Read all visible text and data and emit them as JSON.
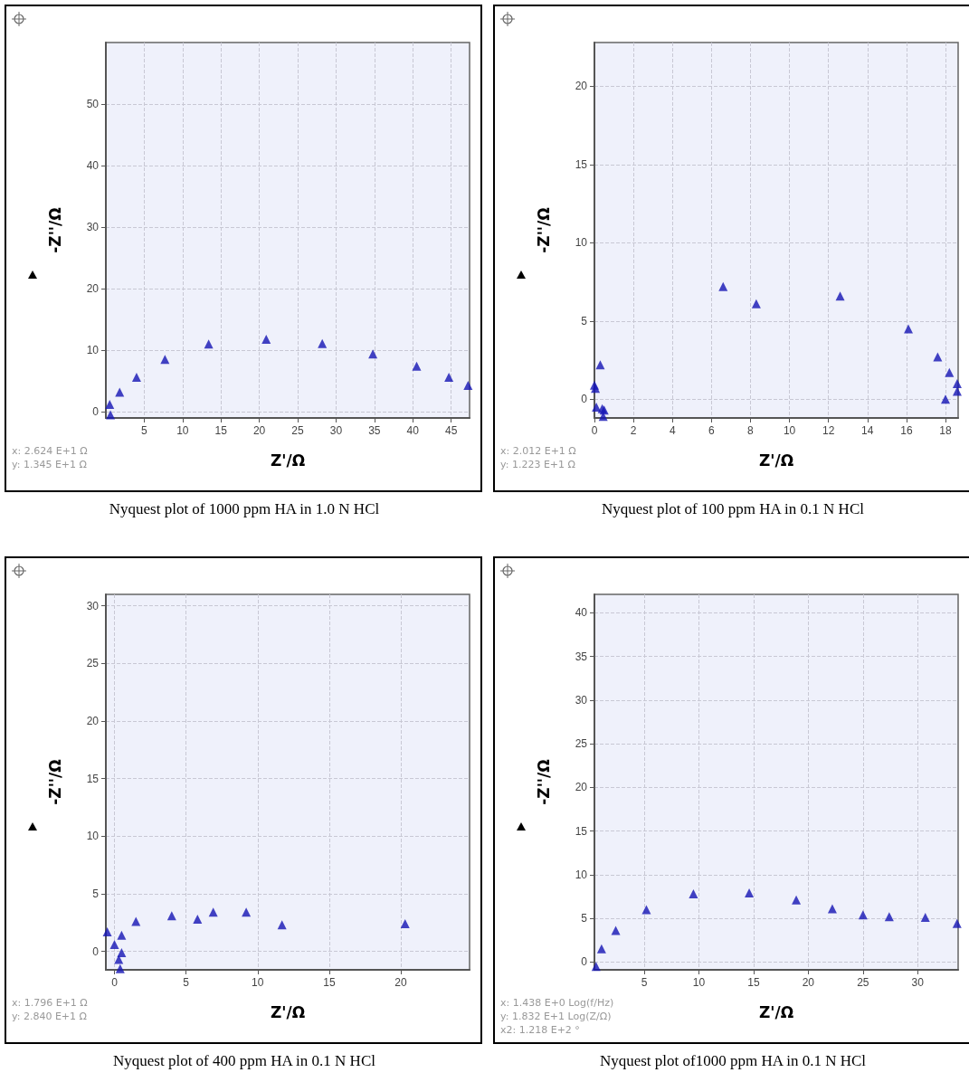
{
  "chart_data": [
    {
      "type": "scatter",
      "title": "Nyquest plot of 1000 ppm HA in 1.0 N HCl",
      "xlabel": "Z'/Ω",
      "ylabel": "-Z''/Ω",
      "marker": "triangle",
      "grid": true,
      "xlim": [
        0,
        47.4
      ],
      "ylim": [
        -1,
        60
      ],
      "xticks": [
        5,
        10,
        15,
        20,
        25,
        30,
        35,
        40,
        45
      ],
      "yticks": [
        0,
        10,
        20,
        30,
        40,
        50
      ],
      "x": [
        0.5,
        0.6,
        1.8,
        4,
        7.7,
        13.4,
        20.9,
        28.2,
        34.8,
        40.5,
        44.7,
        47.2
      ],
      "series": [
        {
          "color": "#1414b4",
          "values": [
            1.2,
            -0.5,
            3.2,
            5.6,
            8.5,
            11,
            11.8,
            11.1,
            9.4,
            7.4,
            5.6,
            4.3
          ]
        }
      ],
      "annotations": [
        "x: 2.624 E+1 Ω",
        "y: 1.345 E+1 Ω"
      ]
    },
    {
      "type": "scatter",
      "title": "Nyquest plot of 100 ppm HA in 0.1 N HCl",
      "xlabel": "Z'/Ω",
      "ylabel": "-Z''/Ω",
      "marker": "triangle",
      "grid": true,
      "xlim": [
        0,
        18.65
      ],
      "ylim": [
        -1.2,
        22.8
      ],
      "xticks": [
        0,
        2,
        4,
        6,
        8,
        10,
        12,
        14,
        16,
        18
      ],
      "yticks": [
        0,
        5,
        10,
        15,
        20
      ],
      "x": [
        0,
        0.05,
        0.3,
        0.1,
        0.4,
        0.5,
        0.45,
        6.6,
        8.3,
        12.6,
        16.1,
        17.6,
        18.2,
        18.0,
        18.6,
        18.6
      ],
      "series": [
        {
          "color": "#1414b4",
          "values": [
            0.9,
            0.7,
            2.2,
            -0.5,
            -0.6,
            -0.7,
            -1.1,
            7.2,
            6.1,
            6.6,
            4.5,
            2.7,
            1.7,
            0,
            1.0,
            0.5
          ]
        }
      ],
      "annotations": [
        "x: 2.012 E+1 Ω",
        "y: 1.223 E+1 Ω"
      ]
    },
    {
      "type": "scatter",
      "title": "Nyquest plot of 400 ppm HA in 0.1 N HCl",
      "xlabel": "Z'/Ω",
      "ylabel": "-Z''/Ω",
      "marker": "triangle",
      "grid": true,
      "xlim": [
        -0.6,
        24.8
      ],
      "ylim": [
        -1.6,
        31
      ],
      "xticks": [
        0,
        5,
        10,
        15,
        20
      ],
      "yticks": [
        0,
        5,
        10,
        15,
        20,
        25,
        30
      ],
      "x": [
        -0.5,
        0,
        0.5,
        0.5,
        0.3,
        0.4,
        1.5,
        4,
        5.8,
        6.9,
        9.2,
        11.7,
        20.3
      ],
      "series": [
        {
          "color": "#1414b4",
          "values": [
            1.7,
            0.6,
            1.4,
            -0.1,
            -0.7,
            -1.5,
            2.6,
            3.1,
            2.8,
            3.4,
            3.4,
            2.3,
            2.4
          ]
        }
      ],
      "annotations": [
        "x: 1.796 E+1 Ω",
        "y: 2.840 E+1 Ω"
      ]
    },
    {
      "type": "scatter",
      "title": "Nyquest plot of1000 ppm HA in 0.1 N HCl",
      "xlabel": "Z'/Ω",
      "ylabel": "-Z''/Ω",
      "marker": "triangle",
      "grid": true,
      "xlim": [
        0.45,
        33.7
      ],
      "ylim": [
        -0.9,
        42.1
      ],
      "xticks": [
        5,
        10,
        15,
        20,
        25,
        30
      ],
      "yticks": [
        0,
        5,
        10,
        15,
        20,
        25,
        30,
        35,
        40
      ],
      "x": [
        0.6,
        1.1,
        2.4,
        5.2,
        9.5,
        14.6,
        18.9,
        22.2,
        25,
        27.4,
        30.7,
        33.6
      ],
      "series": [
        {
          "color": "#1414b4",
          "values": [
            -0.5,
            1.5,
            3.6,
            6,
            7.8,
            7.9,
            7.1,
            6.1,
            5.4,
            5.2,
            5.1,
            4.4
          ]
        }
      ],
      "annotations": [
        "x: 1.438 E+0 Log(f/Hz)",
        "y: 1.832 E+1 Log(Z/Ω)",
        "x2: 1.218 E+2 °"
      ]
    }
  ]
}
